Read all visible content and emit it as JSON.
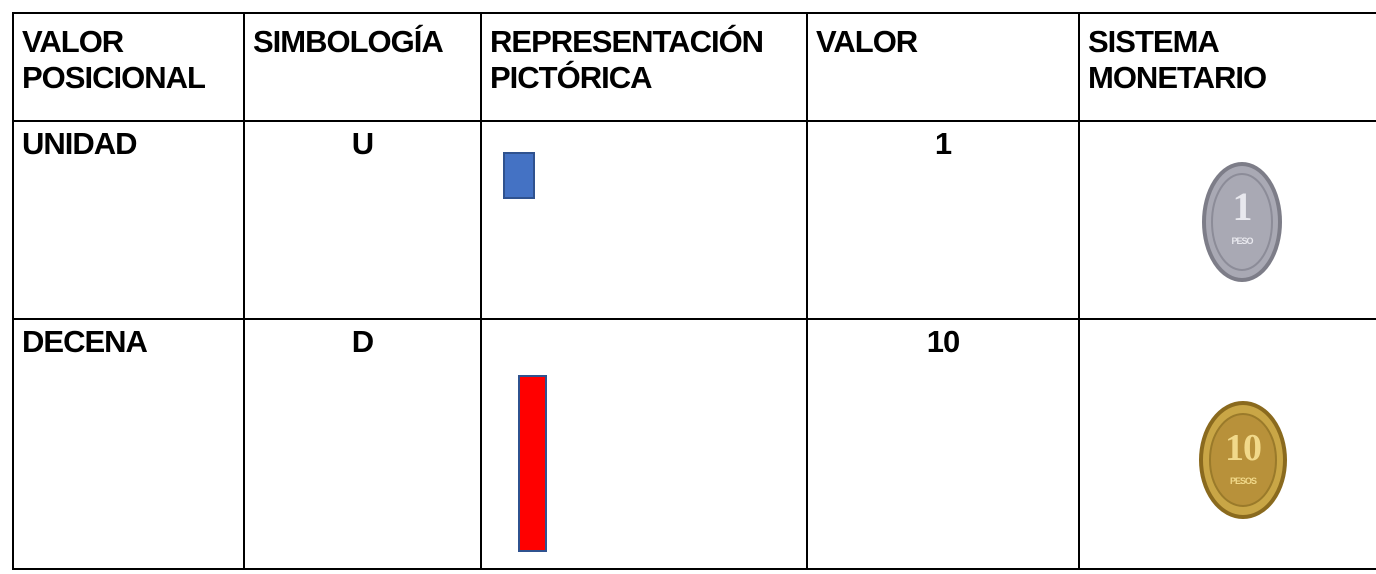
{
  "table": {
    "header": [
      "VALOR POSICIONAL",
      "SIMBOLOGÍA",
      "REPRESENTACIÓN PICTÓRICA",
      "VALOR",
      "SISTEMA MONETARIO"
    ],
    "rows": [
      {
        "name": "UNIDAD",
        "symbol": "U",
        "value": "1",
        "coin": {
          "numeral": "1",
          "unit": "PESO"
        }
      },
      {
        "name": "DECENA",
        "symbol": "D",
        "value": "10",
        "coin": {
          "numeral": "10",
          "unit": "PESOS"
        }
      }
    ]
  }
}
